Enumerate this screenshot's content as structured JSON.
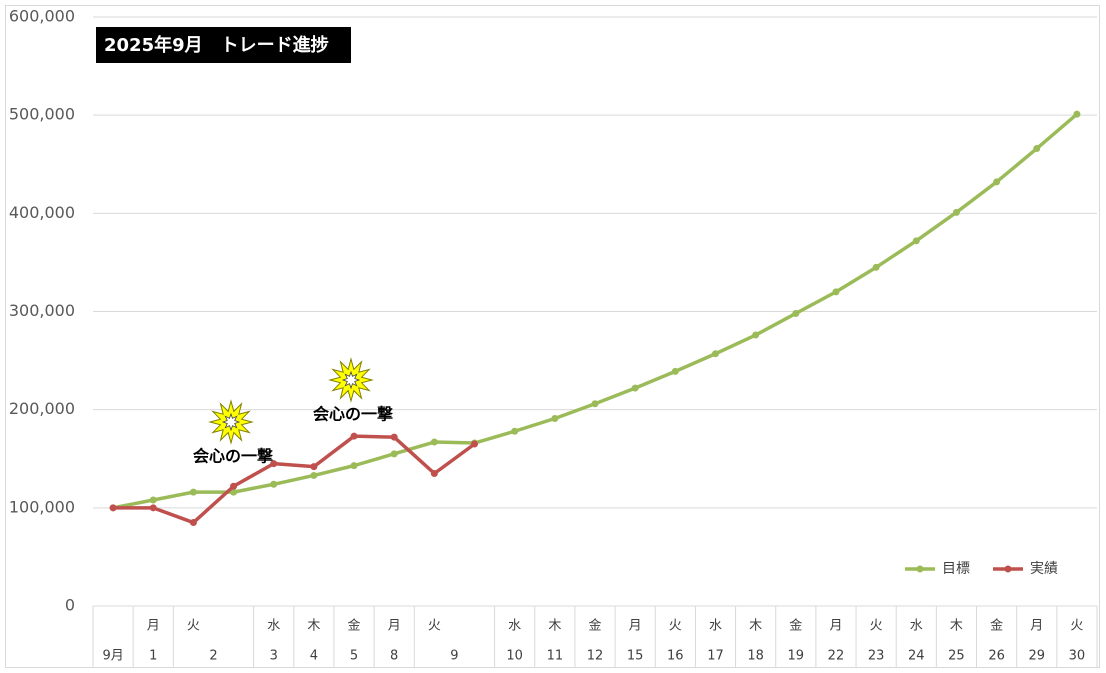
{
  "chart_data": {
    "type": "line",
    "title": "2025年9月　トレード進捗",
    "categories": [
      "9月",
      "1",
      "2",
      null,
      "3",
      "4",
      "5",
      "8",
      "9",
      null,
      "10",
      "11",
      "12",
      "15",
      "16",
      "17",
      "18",
      "19",
      "22",
      "23",
      "24",
      "25",
      "26",
      "29",
      "30"
    ],
    "weekdays": [
      null,
      "月",
      "火",
      null,
      "水",
      "木",
      "金",
      "月",
      "火",
      null,
      "水",
      "木",
      "金",
      "月",
      "火",
      "水",
      "木",
      "金",
      "月",
      "火",
      "水",
      "木",
      "金",
      "月",
      "火"
    ],
    "series": [
      {
        "name": "目標",
        "color": "#9bbb59",
        "values": [
          100000,
          108000,
          116000,
          116000,
          124000,
          133000,
          143000,
          155000,
          167000,
          166000,
          178000,
          191000,
          206000,
          222000,
          239000,
          257000,
          276000,
          298000,
          320000,
          345000,
          372000,
          401000,
          432000,
          466000,
          501000
        ]
      },
      {
        "name": "実績",
        "color": "#c0504d",
        "values": [
          100000,
          100000,
          85000,
          122000,
          145000,
          142000,
          173000,
          172000,
          135000,
          165000,
          null,
          null,
          null,
          null,
          null,
          null,
          null,
          null,
          null,
          null,
          null,
          null,
          null,
          null,
          null
        ]
      }
    ],
    "annotations": [
      "会心の一撃",
      "会心の一撃"
    ],
    "ylim": [
      0,
      600000
    ],
    "yticks": [
      0,
      {
        "value": 100000,
        "label": "100,000"
      },
      {
        "value": 200000,
        "label": "200,000"
      },
      {
        "value": 300000,
        "label": "300,000"
      },
      {
        "value": 400000,
        "label": "400,000"
      },
      {
        "value": 500000,
        "label": "500,000"
      },
      {
        "value": 600000,
        "label": "600,000"
      }
    ],
    "grid": true,
    "legend": "bottom-right"
  }
}
